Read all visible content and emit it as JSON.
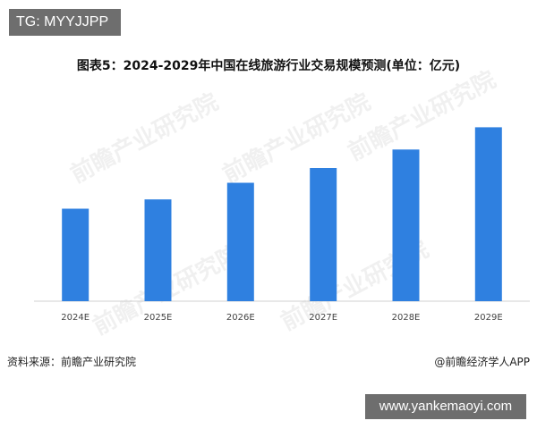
{
  "overlay": {
    "tg_text": "TG: MYYJJPP",
    "site_text": "www.yankemaoyi.com"
  },
  "watermark": "前瞻产业研究院",
  "source": {
    "left": "资料来源：前瞻产业研究院",
    "right": "@前瞻经济学人APP"
  },
  "colors": {
    "bar": "#2f80e0",
    "overlay_bg": "#6e6e6e"
  },
  "chart_data": {
    "type": "bar",
    "title": "图表5：2024-2029年中国在线旅游行业交易规模预测(单位：亿元)",
    "categories": [
      "2024E",
      "2025E",
      "2026E",
      "2027E",
      "2028E",
      "2029E"
    ],
    "values": [
      50,
      55,
      64,
      72,
      82,
      94
    ],
    "xlabel": "",
    "ylabel": "",
    "ylim": [
      0,
      100
    ],
    "grid": false,
    "legend": "none"
  }
}
